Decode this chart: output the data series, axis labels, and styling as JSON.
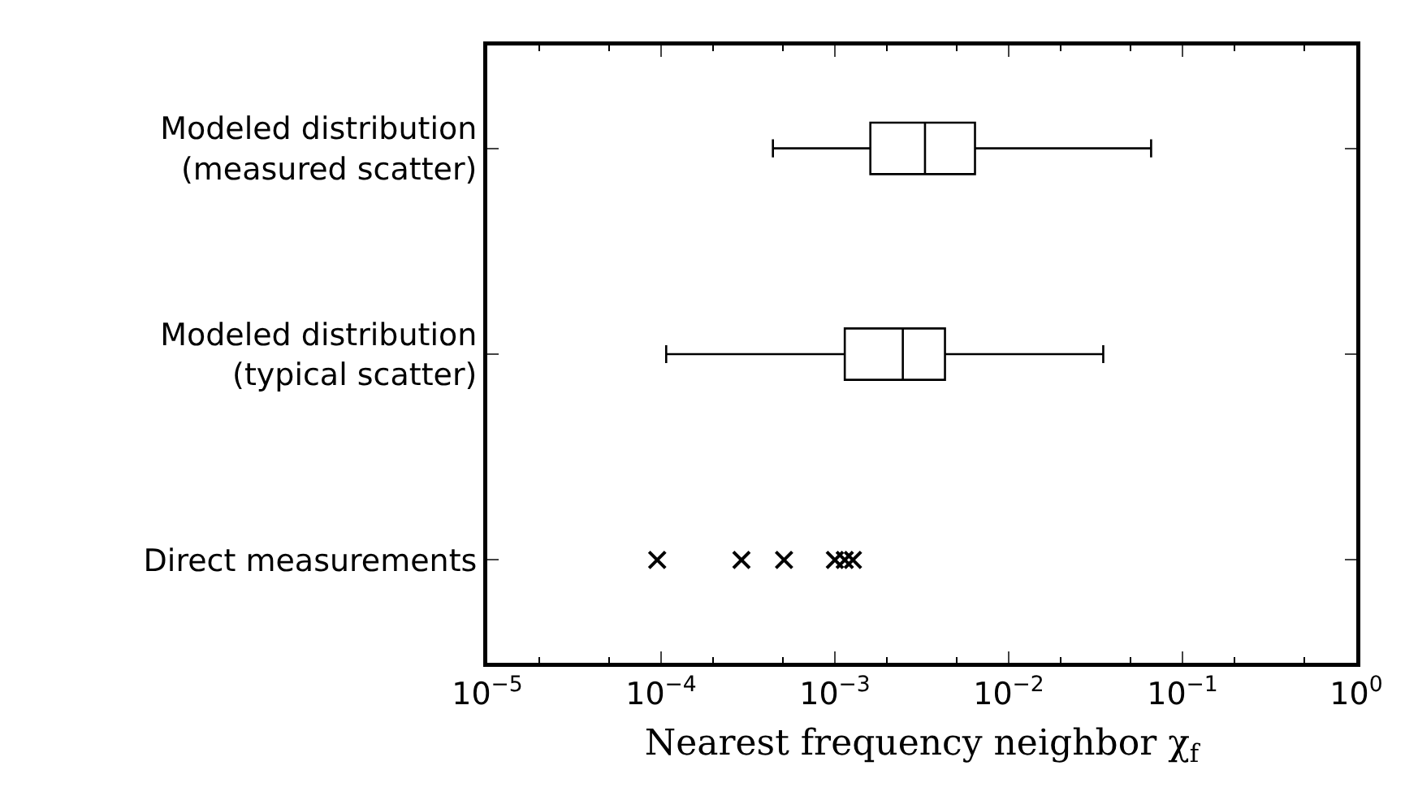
{
  "chart_data": {
    "type": "box",
    "orientation": "horizontal",
    "xlabel": "Nearest frequency neighbor χ$_{f}$",
    "categories": [
      "Modeled distribution (measured scatter)",
      "Modeled distribution (typical scatter)",
      "Direct measurements"
    ],
    "boxes": [
      {
        "low": 0.00044,
        "q1": 0.0016,
        "median": 0.0033,
        "q3": 0.0064,
        "high": 0.066
      },
      {
        "low": 0.000107,
        "q1": 0.00114,
        "median": 0.00246,
        "q3": 0.0043,
        "high": 0.035
      },
      null
    ],
    "series": [
      {
        "type": "scatter",
        "color": "#000000",
        "marker": "cross",
        "x": [
          "Direct measurements",
          "Direct measurements",
          "Direct measurements",
          "Direct measurements",
          "Direct measurements",
          "Direct measurements"
        ],
        "values": [
          9.5e-05,
          0.00029,
          0.00051,
          0.001,
          0.00114,
          0.00127
        ]
      }
    ],
    "log": "x",
    "xlim": [
      1e-05,
      1
    ],
    "xticks": [
      {
        "value": 1e-05,
        "label": "10$^{−5}$"
      },
      {
        "value": 0.0001,
        "label": "10$^{−4}$"
      },
      {
        "value": 0.001,
        "label": "10$^{−3}$"
      },
      {
        "value": 0.01,
        "label": "10$^{−2}$"
      },
      {
        "value": 0.1,
        "label": "10$^{−1}$"
      },
      {
        "value": 1,
        "label": "10$^{0}$"
      }
    ],
    "grid": false
  }
}
